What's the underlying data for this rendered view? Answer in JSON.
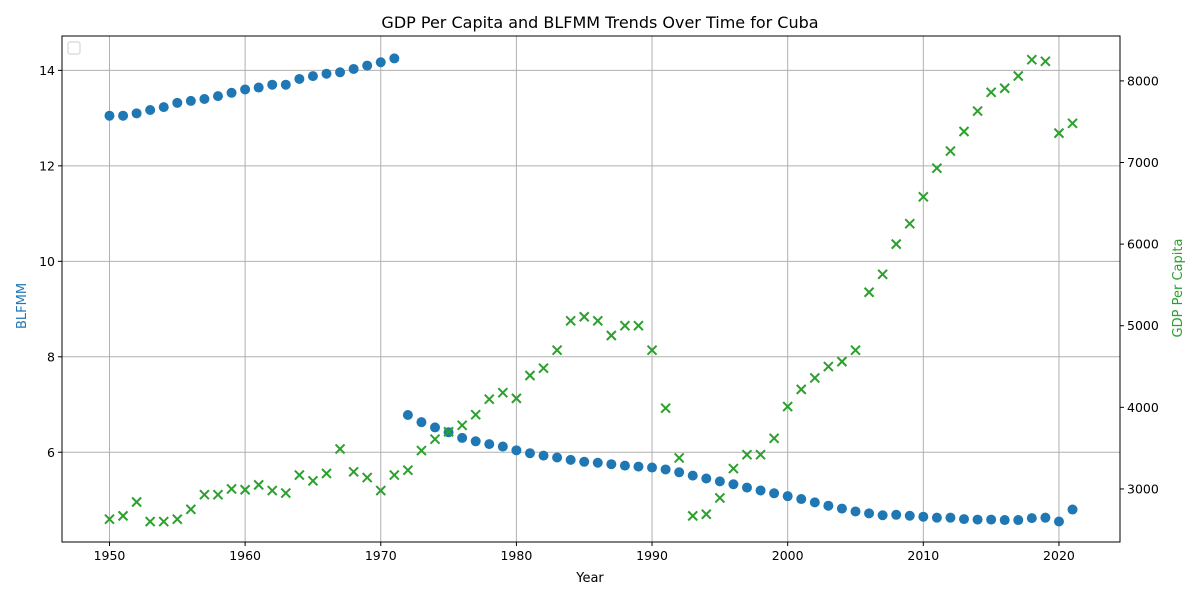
{
  "chart_data": {
    "type": "scatter",
    "title": "GDP Per Capita and BLFMM Trends Over Time for Cuba",
    "xlabel": "Year",
    "ylabel_left": "BLFMM",
    "ylabel_right": "GDP Per Capita",
    "x_range": [
      1946.5,
      2024.5
    ],
    "x_ticks": [
      1950,
      1960,
      1970,
      1980,
      1990,
      2000,
      2010,
      2020
    ],
    "y_left_range": [
      4.12,
      14.72
    ],
    "y_left_ticks": [
      6,
      8,
      10,
      12,
      14
    ],
    "y_right_range": [
      2350,
      8550
    ],
    "y_right_ticks": [
      3000,
      4000,
      5000,
      6000,
      7000,
      8000
    ],
    "grid": true,
    "legend": "top-left (empty)",
    "colors": {
      "blfmm": "#1f77b4",
      "gdp": "#2ca02c"
    },
    "series": [
      {
        "key": "blfmm",
        "axis": "left",
        "marker": "circle",
        "x": [
          1950,
          1951,
          1952,
          1953,
          1954,
          1955,
          1956,
          1957,
          1958,
          1959,
          1960,
          1961,
          1962,
          1963,
          1964,
          1965,
          1966,
          1967,
          1968,
          1969,
          1970,
          1971,
          1972,
          1973,
          1974,
          1975,
          1976,
          1977,
          1978,
          1979,
          1980,
          1981,
          1982,
          1983,
          1984,
          1985,
          1986,
          1987,
          1988,
          1989,
          1990,
          1991,
          1992,
          1993,
          1994,
          1995,
          1996,
          1997,
          1998,
          1999,
          2000,
          2001,
          2002,
          2003,
          2004,
          2005,
          2006,
          2007,
          2008,
          2009,
          2010,
          2011,
          2012,
          2013,
          2014,
          2015,
          2016,
          2017,
          2018,
          2019,
          2020,
          2021
        ],
        "values": [
          13.05,
          13.05,
          13.1,
          13.17,
          13.23,
          13.32,
          13.36,
          13.4,
          13.46,
          13.53,
          13.6,
          13.64,
          13.7,
          13.7,
          13.82,
          13.88,
          13.93,
          13.96,
          14.03,
          14.1,
          14.17,
          14.25,
          6.78,
          6.63,
          6.52,
          6.42,
          6.3,
          6.23,
          6.17,
          6.12,
          6.04,
          5.98,
          5.93,
          5.89,
          5.84,
          5.8,
          5.78,
          5.75,
          5.72,
          5.7,
          5.68,
          5.64,
          5.58,
          5.51,
          5.45,
          5.39,
          5.33,
          5.26,
          5.2,
          5.14,
          5.08,
          5.02,
          4.95,
          4.88,
          4.82,
          4.76,
          4.72,
          4.68,
          4.69,
          4.67,
          4.65,
          4.63,
          4.63,
          4.6,
          4.59,
          4.59,
          4.58,
          4.58,
          4.62,
          4.63,
          4.55,
          4.8
        ]
      },
      {
        "key": "gdp",
        "axis": "right",
        "marker": "x",
        "x": [
          1950,
          1951,
          1952,
          1953,
          1954,
          1955,
          1956,
          1957,
          1958,
          1959,
          1960,
          1961,
          1962,
          1963,
          1964,
          1965,
          1966,
          1967,
          1968,
          1969,
          1970,
          1971,
          1972,
          1973,
          1974,
          1975,
          1976,
          1977,
          1978,
          1979,
          1980,
          1981,
          1982,
          1983,
          1984,
          1985,
          1986,
          1987,
          1988,
          1989,
          1990,
          1991,
          1992,
          1993,
          1994,
          1995,
          1996,
          1997,
          1998,
          1999,
          2000,
          2001,
          2002,
          2003,
          2004,
          2005,
          2006,
          2007,
          2008,
          2009,
          2010,
          2011,
          2012,
          2013,
          2014,
          2015,
          2016,
          2017,
          2018,
          2019,
          2020,
          2021
        ],
        "values": [
          2630,
          2670,
          2840,
          2600,
          2600,
          2630,
          2750,
          2930,
          2930,
          3000,
          2990,
          3050,
          2980,
          2950,
          3170,
          3100,
          3190,
          3490,
          3210,
          3140,
          2980,
          3170,
          3230,
          3470,
          3610,
          3700,
          3780,
          3910,
          4100,
          4180,
          4110,
          4390,
          4480,
          4700,
          5060,
          5110,
          5060,
          4880,
          5000,
          5000,
          4700,
          3990,
          3380,
          2670,
          2690,
          2890,
          3250,
          3420,
          3420,
          3620,
          4010,
          4220,
          4360,
          4500,
          4560,
          4700,
          5410,
          5630,
          6000,
          6250,
          6580,
          6930,
          7140,
          7380,
          7630,
          7860,
          7910,
          8060,
          8260,
          8240,
          7360,
          7480
        ]
      }
    ]
  }
}
